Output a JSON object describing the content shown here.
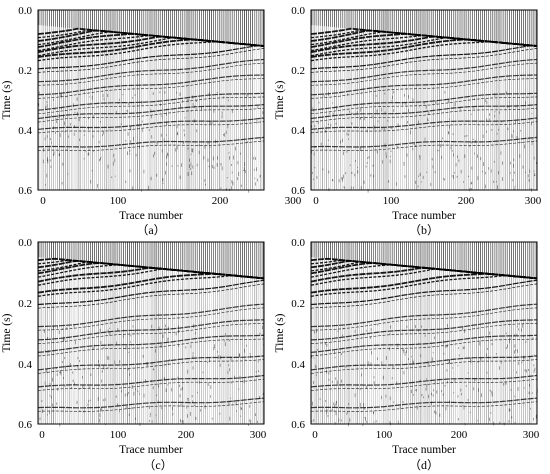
{
  "figure": {
    "panels": [
      {
        "label": "（a）",
        "xlabel": "Trace number",
        "ylabel": "Time (s)",
        "xticks": [
          "0",
          "100",
          "200",
          "300"
        ],
        "yticks": [
          "0.0",
          "0.2",
          "0.4",
          "0.6"
        ]
      },
      {
        "label": "（b）",
        "xlabel": "Trace number",
        "ylabel": "Time (s)",
        "xticks": [
          "0",
          "100",
          "200",
          "300"
        ],
        "yticks": [
          "0.0",
          "0.2",
          "0.4",
          "0.6"
        ]
      },
      {
        "label": "（c）",
        "xlabel": "Trace number",
        "ylabel": "Time (s)",
        "xticks": [
          "0",
          "100",
          "200",
          "300"
        ],
        "yticks": [
          "0.0",
          "0.2",
          "0.4",
          "0.6"
        ]
      },
      {
        "label": "（d）",
        "xlabel": "Trace number",
        "ylabel": "Time (s)",
        "xticks": [
          "0",
          "100",
          "200",
          "300"
        ],
        "yticks": [
          "0.0",
          "0.2",
          "0.4",
          "0.6"
        ]
      }
    ]
  },
  "chart_data": [
    {
      "type": "heatmap",
      "panel": "a",
      "xlabel": "Trace number",
      "ylabel": "Time (s)",
      "xlim": [
        0,
        300
      ],
      "ylim": [
        0.6,
        0.0
      ],
      "traces": 300,
      "events_s": [
        0.08,
        0.1,
        0.12,
        0.14,
        0.16,
        0.2,
        0.24,
        0.28,
        0.33,
        0.36,
        0.4,
        0.46
      ]
    },
    {
      "type": "heatmap",
      "panel": "b",
      "xlabel": "Trace number",
      "ylabel": "Time (s)",
      "xlim": [
        0,
        300
      ],
      "ylim": [
        0.6,
        0.0
      ],
      "traces": 300,
      "events_s": [
        0.08,
        0.1,
        0.12,
        0.14,
        0.16,
        0.2,
        0.24,
        0.28,
        0.33,
        0.36,
        0.4,
        0.46
      ]
    },
    {
      "type": "heatmap",
      "panel": "c",
      "xlabel": "Trace number",
      "ylabel": "Time (s)",
      "xlim": [
        0,
        300
      ],
      "ylim": [
        0.6,
        0.0
      ],
      "traces": 300,
      "events_s": [
        0.06,
        0.08,
        0.1,
        0.13,
        0.17,
        0.21,
        0.28,
        0.32,
        0.36,
        0.42,
        0.48,
        0.55
      ]
    },
    {
      "type": "heatmap",
      "panel": "d",
      "xlabel": "Trace number",
      "ylabel": "Time (s)",
      "xlim": [
        0,
        300
      ],
      "ylim": [
        0.6,
        0.0
      ],
      "traces": 300,
      "events_s": [
        0.06,
        0.08,
        0.1,
        0.13,
        0.17,
        0.21,
        0.28,
        0.32,
        0.36,
        0.42,
        0.48,
        0.55
      ]
    }
  ]
}
